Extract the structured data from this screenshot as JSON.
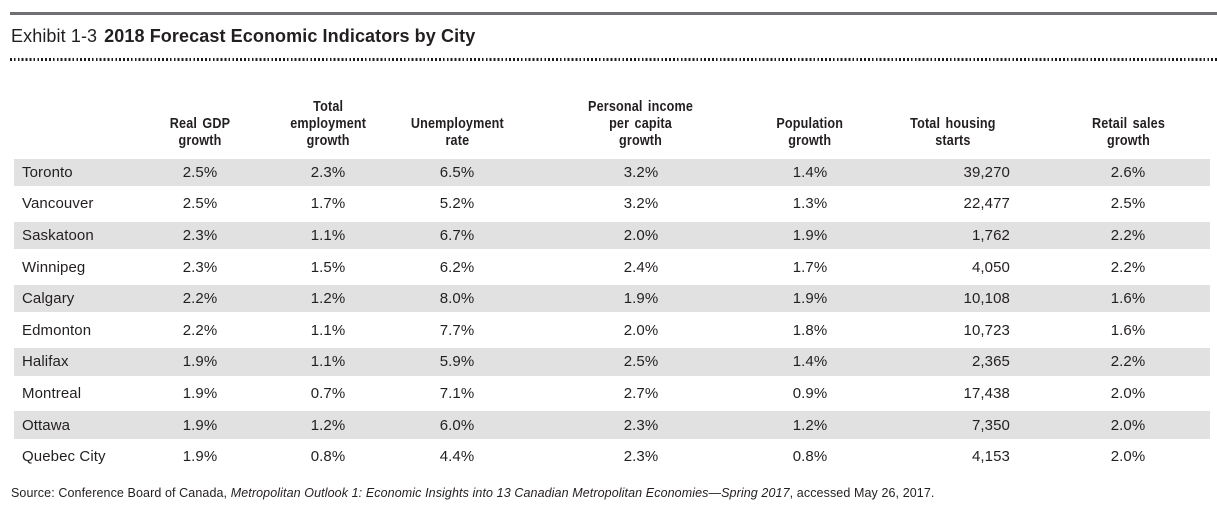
{
  "exhibit": {
    "label": "Exhibit 1-3",
    "title": "2018 Forecast Economic Indicators by City"
  },
  "table": {
    "columns": [
      {
        "key": "city",
        "label": ""
      },
      {
        "key": "real-gdp-growth",
        "label": "Real GDP growth"
      },
      {
        "key": "total-employment-growth",
        "label": "Total\nemployment\ngrowth"
      },
      {
        "key": "unemployment-rate",
        "label": "Unemployment\nrate"
      },
      {
        "key": "personal-income-per-capita-growth",
        "label": "Personal income\nper capita\ngrowth"
      },
      {
        "key": "population-growth",
        "label": "Population\ngrowth"
      },
      {
        "key": "total-housing-starts",
        "label": "Total housing\nstarts"
      },
      {
        "key": "retail-sales-growth",
        "label": "Retail sales\ngrowth"
      }
    ],
    "rows": [
      [
        "Toronto",
        "2.5%",
        "2.3%",
        "6.5%",
        "3.2%",
        "1.4%",
        "39,270",
        "2.6%"
      ],
      [
        "Vancouver",
        "2.5%",
        "1.7%",
        "5.2%",
        "3.2%",
        "1.3%",
        "22,477",
        "2.5%"
      ],
      [
        "Saskatoon",
        "2.3%",
        "1.1%",
        "6.7%",
        "2.0%",
        "1.9%",
        "1,762",
        "2.2%"
      ],
      [
        "Winnipeg",
        "2.3%",
        "1.5%",
        "6.2%",
        "2.4%",
        "1.7%",
        "4,050",
        "2.2%"
      ],
      [
        "Calgary",
        "2.2%",
        "1.2%",
        "8.0%",
        "1.9%",
        "1.9%",
        "10,108",
        "1.6%"
      ],
      [
        "Edmonton",
        "2.2%",
        "1.1%",
        "7.7%",
        "2.0%",
        "1.8%",
        "10,723",
        "1.6%"
      ],
      [
        "Halifax",
        "1.9%",
        "1.1%",
        "5.9%",
        "2.5%",
        "1.4%",
        "2,365",
        "2.2%"
      ],
      [
        "Montreal",
        "1.9%",
        "0.7%",
        "7.1%",
        "2.7%",
        "0.9%",
        "17,438",
        "2.0%"
      ],
      [
        "Ottawa",
        "1.9%",
        "1.2%",
        "6.0%",
        "2.3%",
        "1.2%",
        "7,350",
        "2.0%"
      ],
      [
        "Quebec City",
        "1.9%",
        "0.8%",
        "4.4%",
        "2.3%",
        "0.8%",
        "4,153",
        "2.0%"
      ]
    ]
  },
  "chart_data": {
    "type": "table",
    "title": "2018 Forecast Economic Indicators by City",
    "categories": [
      "Toronto",
      "Vancouver",
      "Saskatoon",
      "Winnipeg",
      "Calgary",
      "Edmonton",
      "Halifax",
      "Montreal",
      "Ottawa",
      "Quebec City"
    ],
    "series": [
      {
        "name": "Real GDP growth (%)",
        "values": [
          2.5,
          2.5,
          2.3,
          2.3,
          2.2,
          2.2,
          1.9,
          1.9,
          1.9,
          1.9
        ]
      },
      {
        "name": "Total employment growth (%)",
        "values": [
          2.3,
          1.7,
          1.1,
          1.5,
          1.2,
          1.1,
          1.1,
          0.7,
          1.2,
          0.8
        ]
      },
      {
        "name": "Unemployment rate (%)",
        "values": [
          6.5,
          5.2,
          6.7,
          6.2,
          8.0,
          7.7,
          5.9,
          7.1,
          6.0,
          4.4
        ]
      },
      {
        "name": "Personal income per capita growth (%)",
        "values": [
          3.2,
          3.2,
          2.0,
          2.4,
          1.9,
          2.0,
          2.5,
          2.7,
          2.3,
          2.3
        ]
      },
      {
        "name": "Population growth (%)",
        "values": [
          1.4,
          1.3,
          1.9,
          1.7,
          1.9,
          1.8,
          1.4,
          0.9,
          1.2,
          0.8
        ]
      },
      {
        "name": "Total housing starts",
        "values": [
          39270,
          22477,
          1762,
          4050,
          10108,
          10723,
          2365,
          17438,
          7350,
          4153
        ]
      },
      {
        "name": "Retail sales growth (%)",
        "values": [
          2.6,
          2.5,
          2.2,
          2.2,
          1.6,
          1.6,
          2.2,
          2.0,
          2.0,
          2.0
        ]
      }
    ]
  },
  "source": {
    "prefix": "Source: Conference Board of Canada, ",
    "italic": "Metropolitan Outlook 1: Economic Insights into 13 Canadian Metropolitan Economies—Spring 2017",
    "suffix": ", accessed May 26, 2017."
  },
  "colors": {
    "stripe": "#e1e1e1",
    "rule_solid": "#6f7073",
    "rule_dotted": "#1d1d1b",
    "text": "#231f20"
  }
}
